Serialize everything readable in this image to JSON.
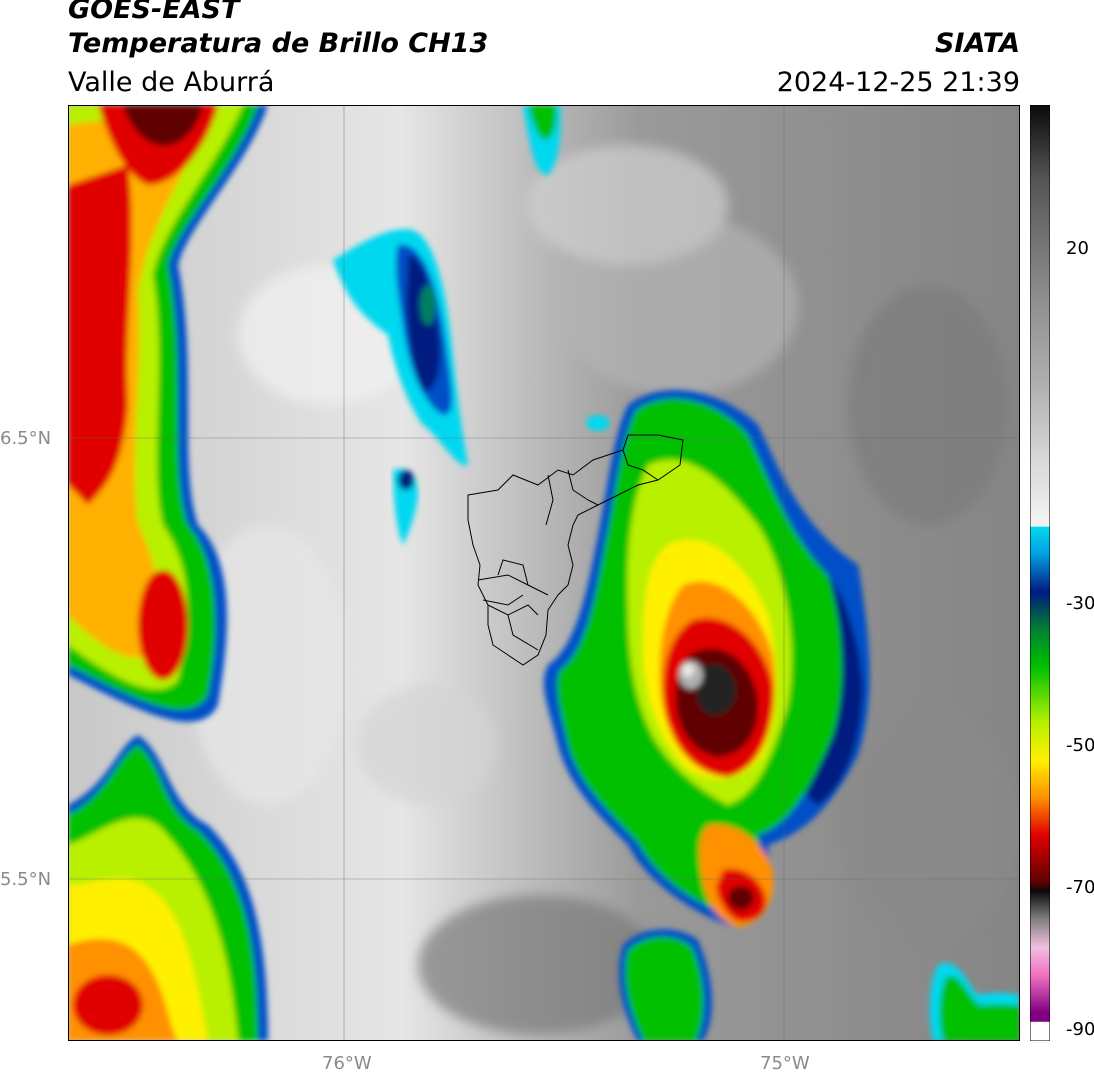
{
  "header": {
    "satellite": "GOES-EAST",
    "product": "Temperatura de Brillo CH13",
    "region": "Valle de Aburrá",
    "agency": "SIATA",
    "datetime": "2024-12-25 21:39"
  },
  "axes": {
    "lat_labels": [
      "6.5°N",
      "5.5°N"
    ],
    "lon_labels": [
      "76°W",
      "75°W"
    ]
  },
  "colorbar": {
    "ticks": [
      "20",
      "-30",
      "-50",
      "-70",
      "-90"
    ],
    "colors": {
      "black": "#0a0a0a",
      "gray_dark": "#555555",
      "gray": "#8c8c8c",
      "gray_light": "#d8d8d8",
      "white": "#f4f4f4",
      "cyan": "#00d8f0",
      "blue": "#0050c8",
      "navy": "#001a80",
      "green": "#00c000",
      "lime": "#b8f000",
      "yellow": "#fff000",
      "orange": "#ff9000",
      "red": "#e00000",
      "darkred": "#600000",
      "pink": "#f070c0",
      "purple": "#800080"
    }
  }
}
